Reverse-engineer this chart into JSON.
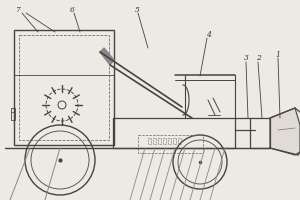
{
  "bg_color": "#ede9e3",
  "line_color": "#444444",
  "dashed_color": "#666666",
  "label_color": "#333333",
  "figsize": [
    3.0,
    2.0
  ],
  "dpi": 100
}
